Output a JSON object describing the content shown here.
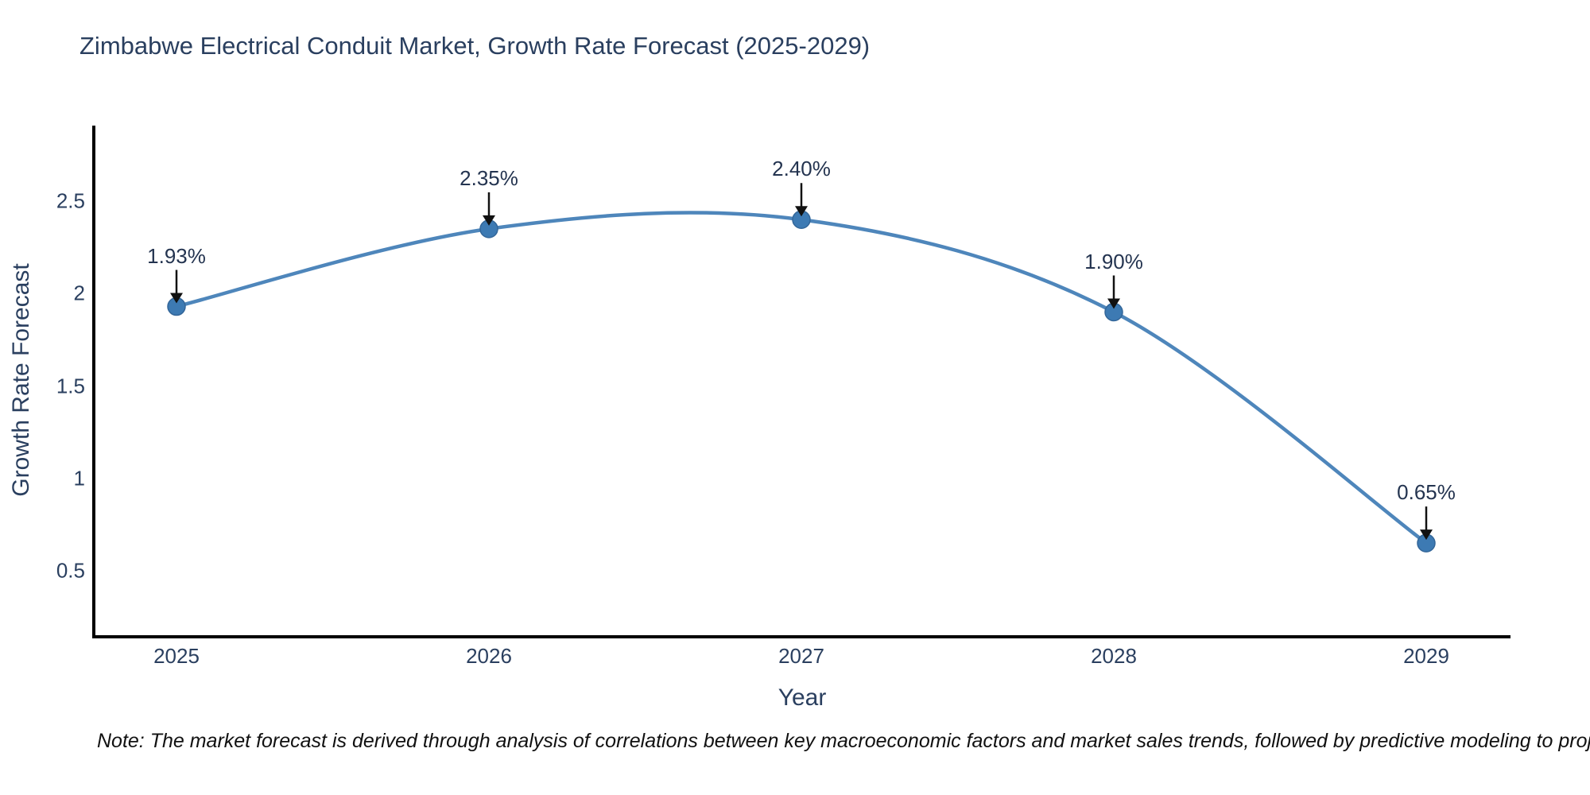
{
  "chart_data": {
    "type": "line",
    "title": "Zimbabwe Electrical Conduit Market, Growth Rate Forecast (2025-2029)",
    "xlabel": "Year",
    "ylabel": "Growth Rate Forecast",
    "categories": [
      "2025",
      "2026",
      "2027",
      "2028",
      "2029"
    ],
    "values": [
      1.93,
      2.35,
      2.4,
      1.9,
      0.65
    ],
    "point_labels": [
      "1.93%",
      "2.35%",
      "2.40%",
      "1.90%",
      "0.65%"
    ],
    "series_name": "Growth Rate Forecast",
    "y_ticks": [
      "0.5",
      "1",
      "1.5",
      "2",
      "2.5"
    ],
    "y_tick_values": [
      0.5,
      1,
      1.5,
      2,
      2.5
    ],
    "ylim": [
      0.14,
      2.93
    ],
    "line_shape": "spline",
    "grid": false,
    "legend_position": "none",
    "colors": {
      "line": "#4e86bb",
      "marker": "#3d7ab3",
      "marker_edge": "#336699",
      "axis_line": "#000000",
      "text": "#2a3f5f",
      "arrow": "#111111"
    },
    "note": "Note: The market forecast is derived through analysis of correlations between key macroeconomic factors and market sales trends, followed by predictive modeling to project future sales"
  }
}
